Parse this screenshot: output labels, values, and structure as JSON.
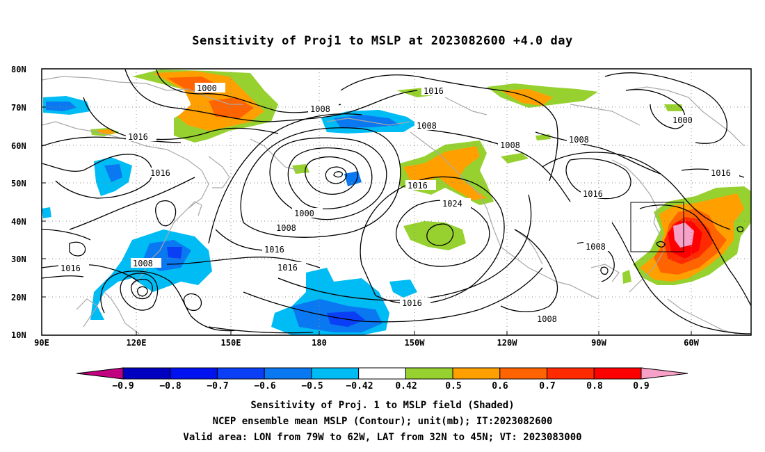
{
  "title": "Sensitivity of Proj1 to MSLP at 2023082600 +4.0 day",
  "lat_labels": [
    "80N",
    "70N",
    "60N",
    "50N",
    "40N",
    "30N",
    "20N",
    "10N"
  ],
  "lon_labels": [
    "90E",
    "120E",
    "150E",
    "180",
    "150W",
    "120W",
    "90W",
    "60W"
  ],
  "contour_labels": [
    "1000",
    "1008",
    "1016",
    "1008",
    "1016",
    "1000",
    "1008",
    "1016",
    "1008",
    "1008",
    "1016",
    "1016",
    "1024",
    "1016",
    "1000",
    "1008",
    "1016",
    "1016",
    "1008",
    "1008"
  ],
  "colorbar": {
    "labels": [
      "−0.9",
      "−0.8",
      "−0.7",
      "−0.6",
      "−0.5",
      "−0.42",
      "0.42",
      "0.5",
      "0.6",
      "0.7",
      "0.8",
      "0.9"
    ],
    "colors": [
      "#c0007f",
      "#0000c0",
      "#0012f0",
      "#0a3ff5",
      "#0a78f0",
      "#00bcf5",
      "#ffffff",
      "#96d130",
      "#ffa000",
      "#ff6400",
      "#ff2a00",
      "#ff0000",
      "#f7a0c8"
    ]
  },
  "captions": [
    "Sensitivity of Proj. 1 to MSLP field (Shaded)",
    "NCEP ensemble mean MSLP (Contour); unit(mb); IT:2023082600",
    "Valid area: LON from 79W to 62W, LAT from 32N to 45N; VT: 2023083000"
  ]
}
